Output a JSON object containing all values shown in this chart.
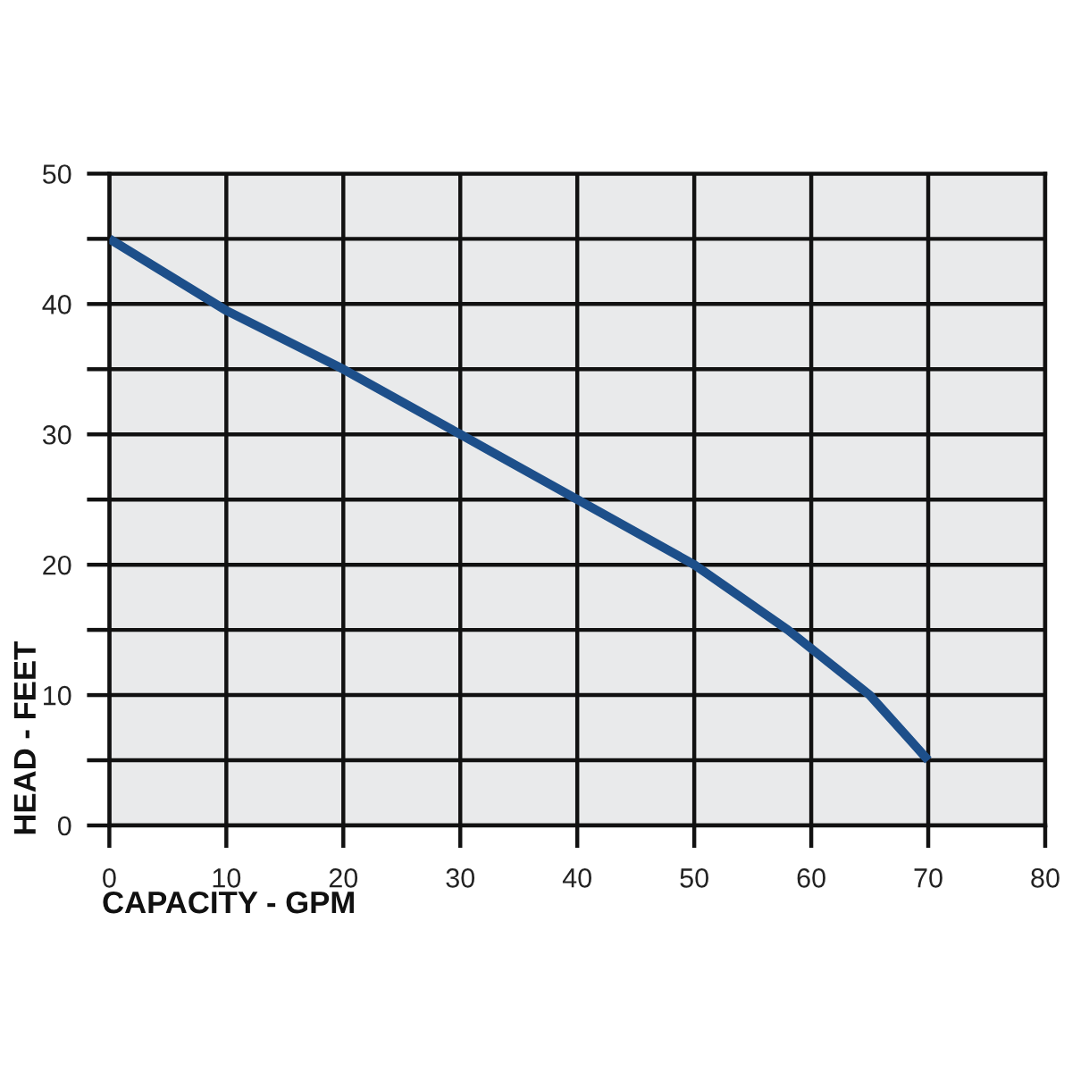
{
  "chart_data": {
    "type": "line",
    "xlabel": "CAPACITY - GPM",
    "ylabel": "HEAD - FEET",
    "x": [
      0,
      10,
      20,
      30,
      40,
      50,
      58,
      65,
      70
    ],
    "series": [
      {
        "color": "#1d4f8a",
        "values": [
          45,
          39.5,
          35,
          30,
          25,
          20,
          15,
          10,
          5
        ]
      }
    ],
    "xlim": [
      0,
      80
    ],
    "xticks": [
      0,
      10,
      20,
      30,
      40,
      50,
      60,
      70,
      80
    ],
    "ylim": [
      0,
      50
    ],
    "yticks": [
      0,
      {
        "value": 5,
        "label": null
      },
      10,
      {
        "value": 15,
        "label": null
      },
      20,
      {
        "value": 25,
        "label": null
      },
      30,
      {
        "value": 35,
        "label": null
      },
      40,
      {
        "value": 45,
        "label": null
      },
      50
    ],
    "grid": true,
    "marker": "none",
    "line_style": "solid"
  }
}
